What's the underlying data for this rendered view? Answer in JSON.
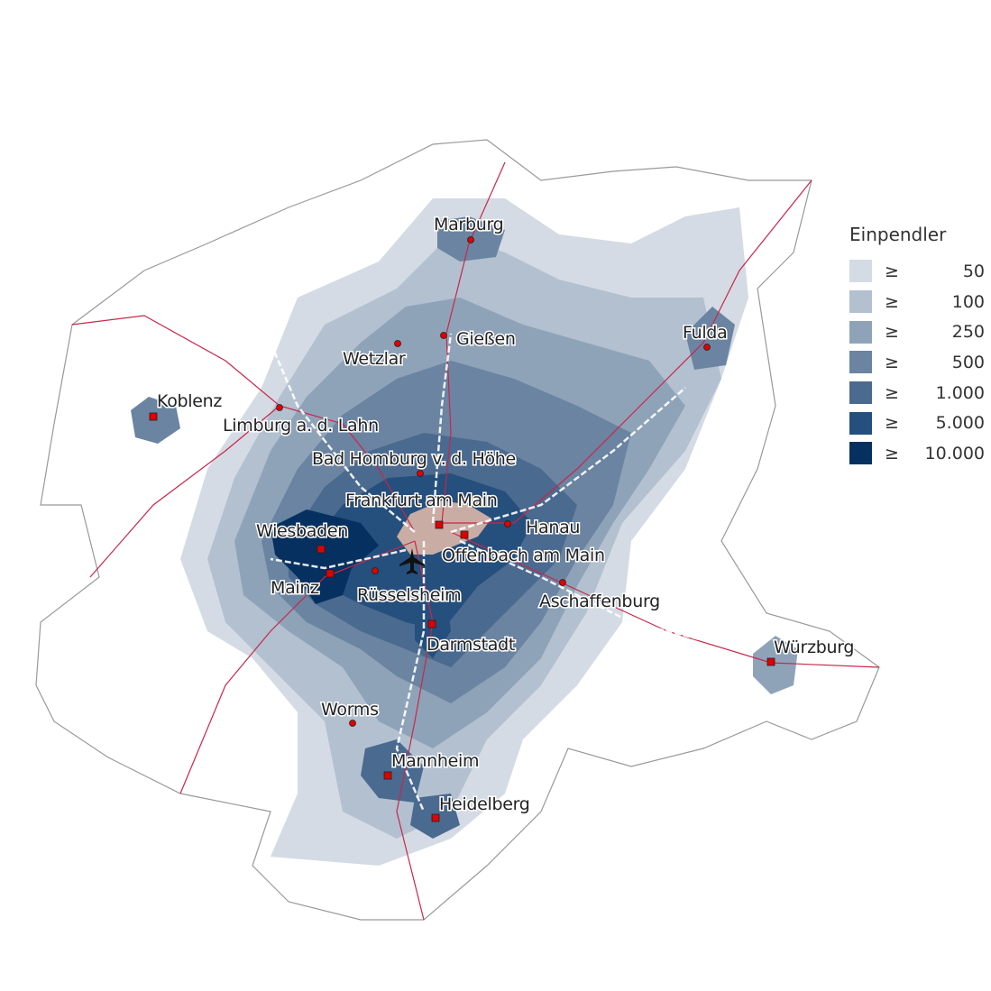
{
  "legend": {
    "title": "Einpendler",
    "classes": [
      {
        "symbol": "≥",
        "value": "50",
        "color": "#d4dbe4"
      },
      {
        "symbol": "≥",
        "value": "100",
        "color": "#b2c0d0"
      },
      {
        "symbol": "≥",
        "value": "250",
        "color": "#8fa3b8"
      },
      {
        "symbol": "≥",
        "value": "500",
        "color": "#6a84a1"
      },
      {
        "symbol": "≥",
        "value": "1.000",
        "color": "#4a6a8f"
      },
      {
        "symbol": "≥",
        "value": "5.000",
        "color": "#254f7c"
      },
      {
        "symbol": "≥",
        "value": "10.000",
        "color": "#06305f"
      }
    ]
  },
  "colors": {
    "destination": "#c9ada5",
    "rail": "#c8274a",
    "motorway": "#ffffff",
    "city_marker": "#e00000"
  },
  "airport_icon": "airplane-icon",
  "cities": [
    {
      "name": "Marburg",
      "marker": "circle"
    },
    {
      "name": "Gießen",
      "marker": "circle"
    },
    {
      "name": "Wetzlar",
      "marker": "circle"
    },
    {
      "name": "Fulda",
      "marker": "circle"
    },
    {
      "name": "Koblenz",
      "marker": "square"
    },
    {
      "name": "Limburg a. d. Lahn",
      "marker": "circle"
    },
    {
      "name": "Bad Homburg v. d. Höhe",
      "marker": "circle"
    },
    {
      "name": "Frankfurt am Main",
      "marker": "square"
    },
    {
      "name": "Hanau",
      "marker": "circle"
    },
    {
      "name": "Wiesbaden",
      "marker": "square"
    },
    {
      "name": "Offenbach am Main",
      "marker": "square"
    },
    {
      "name": "Mainz",
      "marker": "square"
    },
    {
      "name": "Rüsselsheim",
      "marker": "circle"
    },
    {
      "name": "Aschaffenburg",
      "marker": "circle"
    },
    {
      "name": "Darmstadt",
      "marker": "square"
    },
    {
      "name": "Würzburg",
      "marker": "square"
    },
    {
      "name": "Worms",
      "marker": "circle"
    },
    {
      "name": "Mannheim",
      "marker": "square"
    },
    {
      "name": "Heidelberg",
      "marker": "square"
    }
  ]
}
